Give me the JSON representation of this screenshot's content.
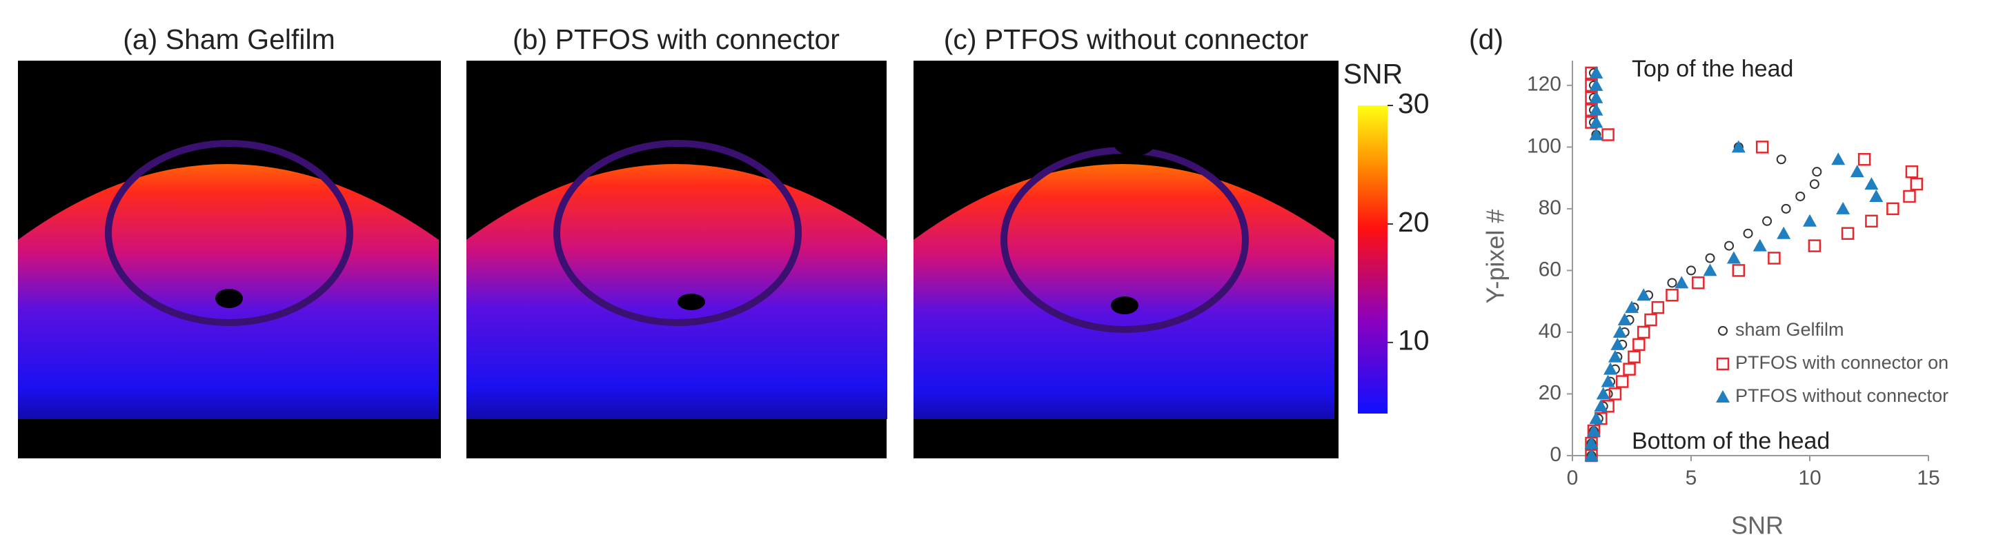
{
  "panels": [
    {
      "title": "(a) Sham Gelfilm"
    },
    {
      "title": "(b) PTFOS with connector"
    },
    {
      "title": "(c) PTFOS without connector"
    }
  ],
  "colorbar": {
    "label": "SNR",
    "lim": [
      4,
      30
    ],
    "ticks": [
      10,
      20,
      30
    ]
  },
  "chart_data": {
    "type": "scatter",
    "panel_label": "(d)",
    "x_label": "SNR",
    "y_label": "Y-pixel #",
    "annotations": [
      "Top of the head",
      "Bottom of the head"
    ],
    "xlim": [
      0,
      15
    ],
    "xticks": [
      0,
      5,
      10,
      15
    ],
    "ylim": [
      0,
      128
    ],
    "yticks": [
      0,
      20,
      40,
      60,
      80,
      100,
      120
    ],
    "series": [
      {
        "name": "sham Gelfilm",
        "color": "#333333",
        "marker": "circle",
        "x": [
          0.8,
          0.8,
          0.9,
          1.1,
          1.3,
          1.5,
          1.6,
          1.8,
          1.9,
          2.1,
          2.2,
          2.4,
          2.6,
          3.2,
          4.2,
          5.0,
          5.8,
          6.6,
          7.4,
          8.2,
          9.0,
          9.6,
          10.2,
          10.3,
          8.8,
          7.0,
          1.0,
          0.9,
          0.9,
          0.9,
          0.9,
          0.9
        ],
        "values": [
          0,
          4,
          8,
          12,
          16,
          20,
          24,
          28,
          32,
          36,
          40,
          44,
          48,
          52,
          56,
          60,
          64,
          68,
          72,
          76,
          80,
          84,
          88,
          92,
          96,
          100,
          104,
          108,
          112,
          116,
          120,
          124
        ]
      },
      {
        "name": "PTFOS with connector on",
        "color": "#e8262b",
        "marker": "square",
        "x": [
          0.8,
          0.8,
          0.9,
          1.2,
          1.5,
          1.8,
          2.1,
          2.4,
          2.6,
          2.8,
          3.0,
          3.3,
          3.6,
          4.2,
          5.3,
          7.0,
          8.5,
          10.2,
          11.6,
          12.6,
          13.5,
          14.2,
          14.5,
          14.3,
          12.3,
          8.0,
          1.5,
          0.8,
          0.8,
          0.8,
          0.8,
          0.8
        ],
        "values": [
          0,
          4,
          8,
          12,
          16,
          20,
          24,
          28,
          32,
          36,
          40,
          44,
          48,
          52,
          56,
          60,
          64,
          68,
          72,
          76,
          80,
          84,
          88,
          92,
          96,
          100,
          104,
          108,
          112,
          116,
          120,
          124
        ]
      },
      {
        "name": "PTFOS without connector",
        "color": "#1f7fc0",
        "marker": "triangle",
        "x": [
          0.8,
          0.8,
          0.9,
          1.0,
          1.2,
          1.3,
          1.5,
          1.6,
          1.8,
          1.9,
          2.0,
          2.2,
          2.5,
          3.0,
          4.6,
          5.8,
          6.8,
          7.9,
          8.9,
          10.0,
          11.4,
          12.8,
          12.6,
          12.0,
          11.2,
          7.0,
          1.0,
          1.0,
          1.0,
          1.0,
          1.0,
          1.0
        ],
        "values": [
          0,
          4,
          8,
          12,
          16,
          20,
          24,
          28,
          32,
          36,
          40,
          44,
          48,
          52,
          56,
          60,
          64,
          68,
          72,
          76,
          80,
          84,
          88,
          92,
          96,
          100,
          104,
          108,
          112,
          116,
          120,
          124
        ]
      }
    ]
  }
}
